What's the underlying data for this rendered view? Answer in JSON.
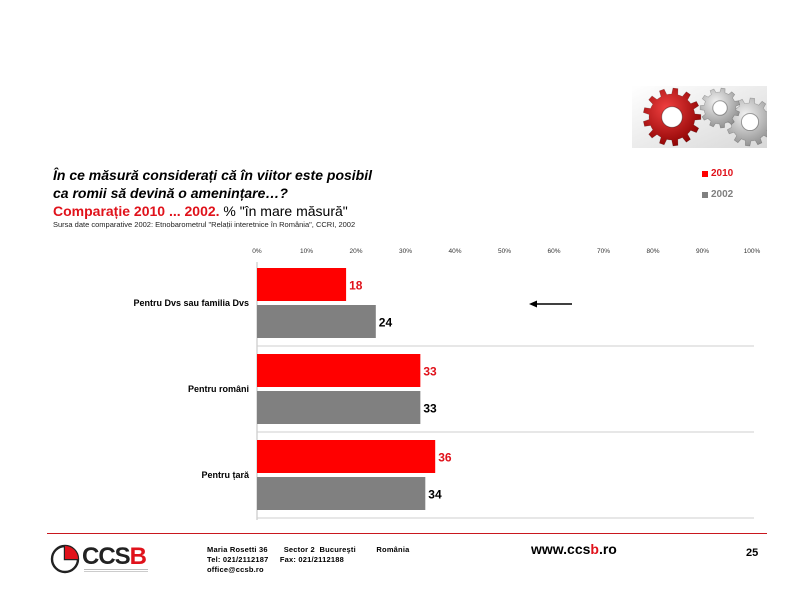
{
  "header": {
    "question_line1": "În ce măsură considerați că în viitor este posibil",
    "question_line2": "ca romii să devină o amenințare…?",
    "comparison_red": "Comparație 2010 ... 2002.",
    "comparison_black": " % \"în mare măsură\"",
    "source": "Sursa date comparative 2002: Etnobarometrul \"Relații interetnice în România\", CCRI, 2002"
  },
  "legend": [
    {
      "label": "2010",
      "color": "#ff0000"
    },
    {
      "label": "2002",
      "color": "#808080"
    }
  ],
  "chart_data": {
    "type": "bar",
    "orientation": "horizontal",
    "xlim": [
      0,
      100
    ],
    "x_ticks": [
      "0%",
      "10%",
      "20%",
      "30%",
      "40%",
      "50%",
      "60%",
      "70%",
      "80%",
      "90%",
      "100%"
    ],
    "categories": [
      "Pentru Dvs sau familia Dvs",
      "Pentru români",
      "Pentru țară"
    ],
    "series": [
      {
        "name": "2010",
        "color": "#ff0000",
        "label_color": "#e0121b",
        "values": [
          18,
          33,
          36
        ]
      },
      {
        "name": "2002",
        "color": "#808080",
        "label_color": "#000000",
        "values": [
          24,
          33,
          34
        ]
      }
    ],
    "legend_position": "top-right",
    "grid": false
  },
  "footer": {
    "logo_text": "CCSB",
    "address_line1": "Maria Rosetti 36       Sector 2  Bucureşti         România",
    "address_line2": "Tel: 021/2112187     Fax: 021/2112188",
    "address_line3": "office@ccsb.ro",
    "www_prefix": "www.ccs",
    "www_accent": "b",
    "www_suffix": ".ro",
    "page_number": "25"
  }
}
